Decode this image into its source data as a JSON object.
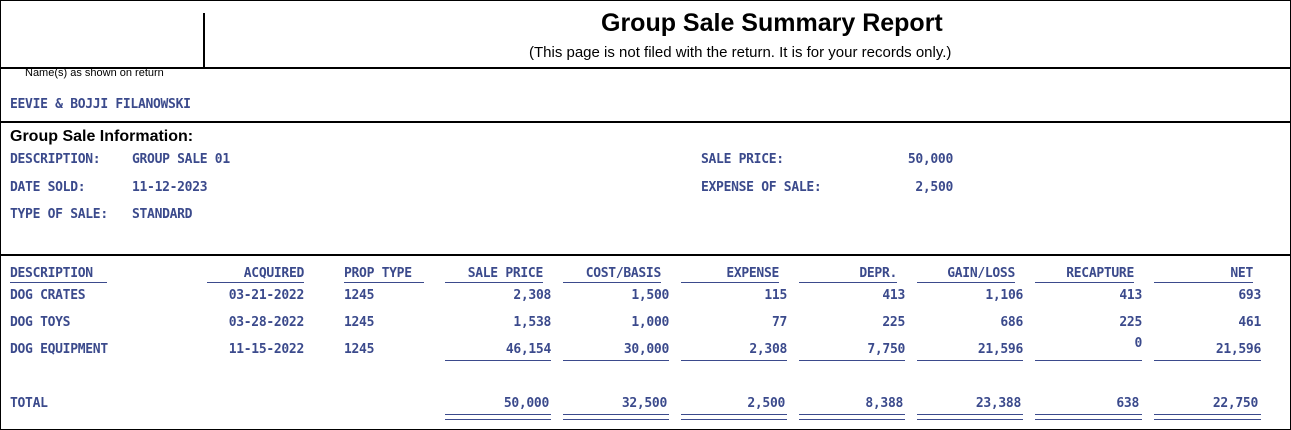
{
  "report": {
    "title": "Group Sale Summary Report",
    "subtitle": "(This page is not filed with the return. It is for your records only.)",
    "name_label": "Name(s) as shown on return",
    "name_value": "EEVIE & BOJJI FILANOWSKI"
  },
  "group_info": {
    "section_title": "Group Sale Information:",
    "description_label": "DESCRIPTION:",
    "description_value": "GROUP SALE 01",
    "date_sold_label": "DATE SOLD:",
    "date_sold_value": "11-12-2023",
    "type_label": "TYPE OF SALE:",
    "type_value": "STANDARD",
    "sale_price_label": "SALE PRICE:",
    "sale_price_value": "50,000",
    "expense_label": "EXPENSE OF SALE:",
    "expense_value": "2,500"
  },
  "table": {
    "headers": [
      "DESCRIPTION",
      "ACQUIRED",
      "PROP TYPE",
      "SALE PRICE",
      "COST/BASIS",
      "EXPENSE",
      "DEPR.",
      "GAIN/LOSS",
      "RECAPTURE",
      "NET"
    ],
    "rows": [
      [
        "DOG CRATES",
        "03-21-2022",
        "1245",
        "2,308",
        "1,500",
        "115",
        "413",
        "1,106",
        "413",
        "693"
      ],
      [
        "DOG TOYS",
        "03-28-2022",
        "1245",
        "1,538",
        "1,000",
        "77",
        "225",
        "686",
        "225",
        "461"
      ],
      [
        "DOG EQUIPMENT",
        "11-15-2022",
        "1245",
        "46,154",
        "30,000",
        "2,308",
        "7,750",
        "21,596",
        "0",
        "21,596"
      ]
    ],
    "total_label": "TOTAL",
    "totals": [
      "50,000",
      "32,500",
      "2,500",
      "8,388",
      "23,388",
      "638",
      "22,750"
    ]
  }
}
